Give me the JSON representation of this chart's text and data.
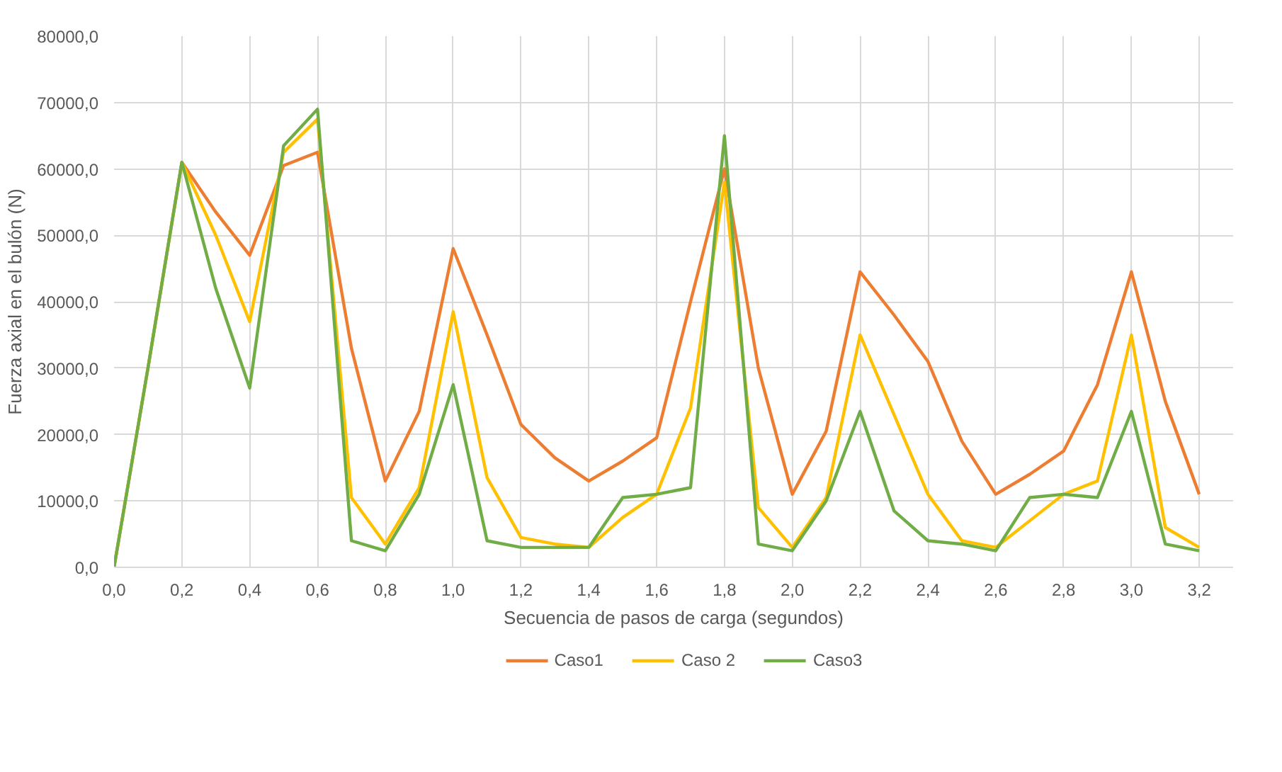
{
  "chart_data": {
    "type": "line",
    "xlabel": "Secuencia de pasos de carga (segundos)",
    "ylabel": "Fuerza axial en el bulón (N)",
    "x": [
      0,
      0.1,
      0.2,
      0.3,
      0.4,
      0.5,
      0.6,
      0.7,
      0.8,
      0.9,
      1.0,
      1.1,
      1.2,
      1.3,
      1.4,
      1.5,
      1.6,
      1.7,
      1.8,
      1.9,
      2.0,
      2.1,
      2.2,
      2.3,
      2.4,
      2.5,
      2.6,
      2.7,
      2.8,
      2.9,
      3.0,
      3.1,
      3.2
    ],
    "series": [
      {
        "name": "Caso1",
        "color": "#ed7d31",
        "values": [
          0,
          30000,
          61000,
          53500,
          47000,
          60500,
          62500,
          33000,
          13000,
          23500,
          48000,
          35000,
          21500,
          16500,
          13000,
          16000,
          19500,
          40000,
          60000,
          30000,
          11000,
          20500,
          44500,
          38000,
          31000,
          19000,
          11000,
          14000,
          17500,
          27500,
          44500,
          25000,
          11000
        ]
      },
      {
        "name": "Caso 2",
        "color": "#ffc000",
        "values": [
          0,
          30000,
          61000,
          50000,
          37000,
          62500,
          67500,
          10500,
          3500,
          12000,
          38500,
          13500,
          4500,
          3500,
          3000,
          7500,
          11000,
          24000,
          58000,
          9000,
          3000,
          10500,
          35000,
          23000,
          11000,
          4000,
          3000,
          7000,
          11000,
          13000,
          35000,
          6000,
          3000
        ]
      },
      {
        "name": "Caso3",
        "color": "#70ad47",
        "values": [
          0,
          30000,
          61000,
          42000,
          27000,
          63500,
          69000,
          4000,
          2500,
          11000,
          27500,
          4000,
          3000,
          3000,
          3000,
          10500,
          11000,
          12000,
          65000,
          3500,
          2500,
          10000,
          23500,
          8500,
          4000,
          3500,
          2500,
          10500,
          11000,
          10500,
          23500,
          3500,
          2500
        ]
      }
    ],
    "xlim": [
      0,
      3.3
    ],
    "xticks": [
      {
        "value": 0,
        "label": "0,0"
      },
      {
        "value": 0.2,
        "label": "0,2"
      },
      {
        "value": 0.4,
        "label": "0,4"
      },
      {
        "value": 0.6,
        "label": "0,6"
      },
      {
        "value": 0.8,
        "label": "0,8"
      },
      {
        "value": 1.0,
        "label": "1,0"
      },
      {
        "value": 1.2,
        "label": "1,2"
      },
      {
        "value": 1.4,
        "label": "1,4"
      },
      {
        "value": 1.6,
        "label": "1,6"
      },
      {
        "value": 1.8,
        "label": "1,8"
      },
      {
        "value": 2.0,
        "label": "2,0"
      },
      {
        "value": 2.2,
        "label": "2,2"
      },
      {
        "value": 2.4,
        "label": "2,4"
      },
      {
        "value": 2.6,
        "label": "2,6"
      },
      {
        "value": 2.8,
        "label": "2,8"
      },
      {
        "value": 3.0,
        "label": "3,0"
      },
      {
        "value": 3.2,
        "label": "3,2"
      }
    ],
    "ylim": [
      0,
      80000
    ],
    "yticks": [
      {
        "value": 0,
        "label": "0,0"
      },
      {
        "value": 10000,
        "label": "10000,0"
      },
      {
        "value": 20000,
        "label": "20000,0"
      },
      {
        "value": 30000,
        "label": "30000,0"
      },
      {
        "value": 40000,
        "label": "40000,0"
      },
      {
        "value": 50000,
        "label": "50000,0"
      },
      {
        "value": 60000,
        "label": "60000,0"
      },
      {
        "value": 70000,
        "label": "70000,0"
      },
      {
        "value": 80000,
        "label": "80000,0"
      }
    ],
    "grid": true,
    "legend": "bottom"
  }
}
